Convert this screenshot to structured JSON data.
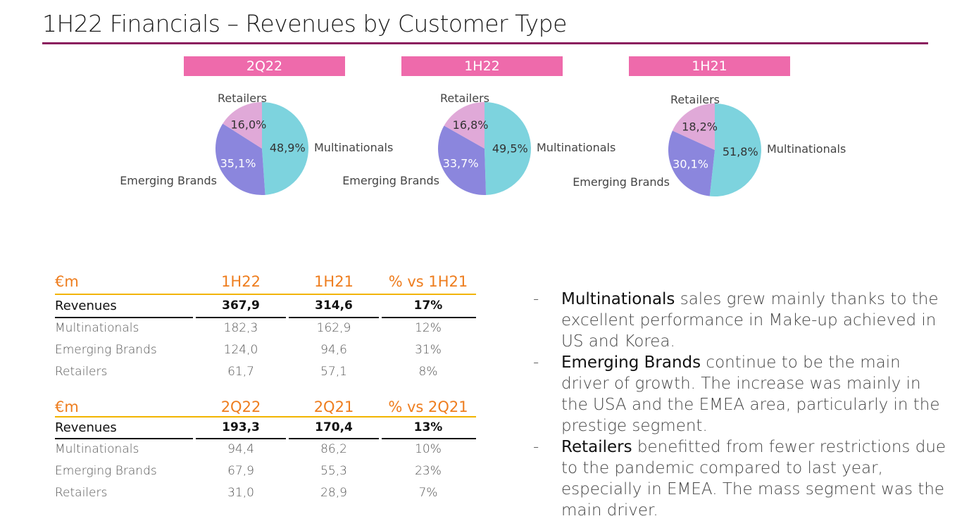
{
  "title": "1H22 Financials – Revenues by Customer Type",
  "colors": {
    "multinationals": "#7dd3de",
    "emerging": "#8b86dd",
    "retailers": "#e0a9d8",
    "label_bg": "#ee6aab",
    "accent": "#ee7d1e",
    "rule": "#8b1e5e"
  },
  "chart_data": [
    {
      "type": "pie",
      "title": "2Q22",
      "categories": [
        "Multinationals",
        "Emerging Brands",
        "Retailers"
      ],
      "values": [
        48.9,
        35.1,
        16.0
      ],
      "value_labels": [
        "48,9%",
        "35,1%",
        "16,0%"
      ]
    },
    {
      "type": "pie",
      "title": "1H22",
      "categories": [
        "Multinationals",
        "Emerging Brands",
        "Retailers"
      ],
      "values": [
        49.5,
        33.7,
        16.8
      ],
      "value_labels": [
        "49,5%",
        "33,7%",
        "16,8%"
      ]
    },
    {
      "type": "pie",
      "title": "1H21",
      "categories": [
        "Multinationals",
        "Emerging Brands",
        "Retailers"
      ],
      "values": [
        51.8,
        30.1,
        18.2
      ],
      "value_labels": [
        "51,8%",
        "30,1%",
        "18,2%"
      ]
    }
  ],
  "table1": {
    "header": [
      "€m",
      "1H22",
      "1H21",
      "% vs 1H21"
    ],
    "revenues": [
      "Revenues",
      "367,9",
      "314,6",
      "17%"
    ],
    "rows": [
      [
        "Multinationals",
        "182,3",
        "162,9",
        "12%"
      ],
      [
        "Emerging Brands",
        "124,0",
        "94,6",
        "31%"
      ],
      [
        "Retailers",
        "61,7",
        "57,1",
        "8%"
      ]
    ]
  },
  "table2": {
    "header": [
      "€m",
      "2Q22",
      "2Q21",
      "% vs 2Q21"
    ],
    "revenues": [
      "Revenues",
      "193,3",
      "170,4",
      "13%"
    ],
    "rows": [
      [
        "Multinationals",
        "94,4",
        "86,2",
        "10%"
      ],
      [
        "Emerging Brands",
        "67,9",
        "55,3",
        "23%"
      ],
      [
        "Retailers",
        "31,0",
        "28,9",
        "7%"
      ]
    ]
  },
  "bullets": [
    {
      "dash": "-",
      "bold": "Multinationals",
      "text": " sales grew mainly thanks to the excellent performance in Make-up achieved in US and Korea."
    },
    {
      "dash": "-",
      "bold": "Emerging Brands",
      "text": " continue to be the main driver of growth. The increase was mainly in the USA and the EMEA area, particularly in the prestige segment."
    },
    {
      "dash": "-",
      "bold": "Retailers",
      "text": " benefitted from fewer restrictions due to the pandemic compared to last year, especially in EMEA. The mass segment was the main driver."
    }
  ]
}
